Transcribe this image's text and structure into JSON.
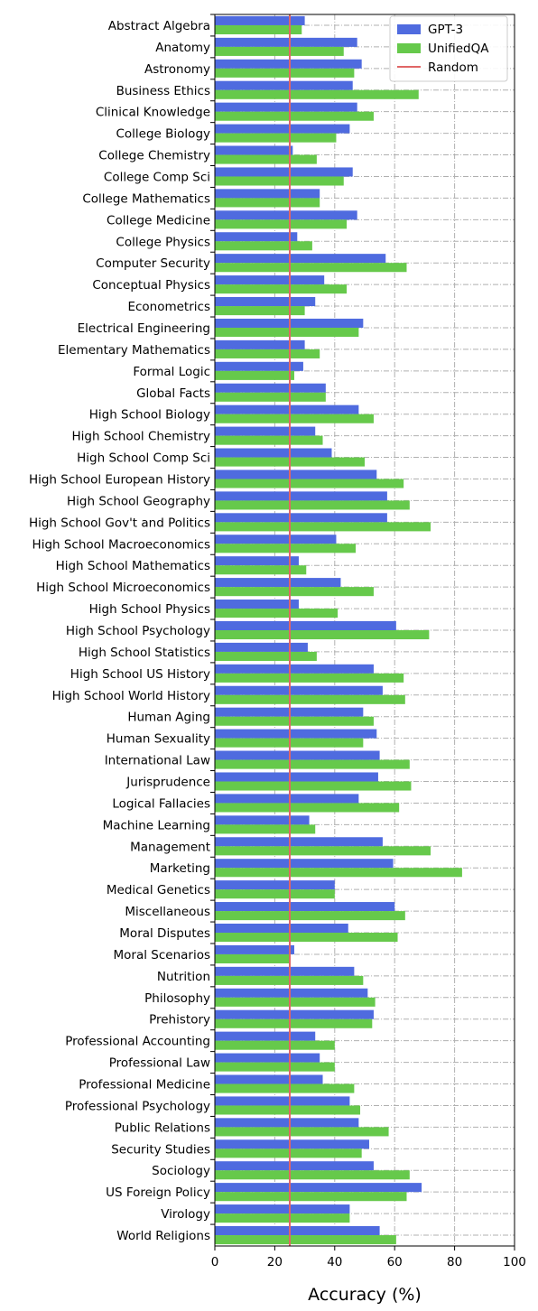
{
  "chart_data": {
    "type": "bar",
    "orientation": "horizontal",
    "xlabel": "Accuracy (%)",
    "ylabel": "",
    "xlim": [
      0,
      100
    ],
    "xticks": [
      0,
      20,
      40,
      60,
      80,
      100
    ],
    "grid": true,
    "legend_position": "top-right",
    "reference_line": {
      "name": "Random",
      "value": 25,
      "color": "#e06666"
    },
    "categories": [
      "Abstract Algebra",
      "Anatomy",
      "Astronomy",
      "Business Ethics",
      "Clinical Knowledge",
      "College Biology",
      "College Chemistry",
      "College Comp Sci",
      "College Mathematics",
      "College Medicine",
      "College Physics",
      "Computer Security",
      "Conceptual Physics",
      "Econometrics",
      "Electrical Engineering",
      "Elementary Mathematics",
      "Formal Logic",
      "Global Facts",
      "High School Biology",
      "High School Chemistry",
      "High School Comp Sci",
      "High School European History",
      "High School Geography",
      "High School Gov't and Politics",
      "High School Macroeconomics",
      "High School Mathematics",
      "High School Microeconomics",
      "High School Physics",
      "High School Psychology",
      "High School Statistics",
      "High School US History",
      "High School World History",
      "Human Aging",
      "Human Sexuality",
      "International Law",
      "Jurisprudence",
      "Logical Fallacies",
      "Machine Learning",
      "Management",
      "Marketing",
      "Medical Genetics",
      "Miscellaneous",
      "Moral Disputes",
      "Moral Scenarios",
      "Nutrition",
      "Philosophy",
      "Prehistory",
      "Professional Accounting",
      "Professional Law",
      "Professional Medicine",
      "Professional Psychology",
      "Public Relations",
      "Security Studies",
      "Sociology",
      "US Foreign Policy",
      "Virology",
      "World Religions"
    ],
    "series": [
      {
        "name": "GPT-3",
        "color": "#4f6bdf",
        "values": [
          30,
          47.5,
          49,
          46,
          47.5,
          45,
          26,
          46,
          35,
          47.5,
          27.5,
          57,
          36.5,
          33.5,
          49.5,
          30,
          29.5,
          37,
          48,
          33.5,
          39,
          54,
          57.5,
          57.5,
          40.5,
          28,
          42,
          28,
          60.5,
          31,
          53,
          56,
          49.5,
          54,
          55,
          54.5,
          48,
          31.5,
          56,
          59.5,
          40,
          60,
          44.5,
          26.5,
          46.5,
          51,
          53,
          33.5,
          35,
          36,
          45,
          48,
          51.5,
          53,
          69,
          45,
          55
        ]
      },
      {
        "name": "UnifiedQA",
        "color": "#66c94b",
        "values": [
          29,
          43,
          46.5,
          68,
          53,
          40.5,
          34,
          43,
          35,
          44,
          32.5,
          64,
          44,
          30,
          48,
          35,
          26.5,
          37,
          53,
          36,
          50,
          63,
          65,
          72,
          47,
          30.5,
          53,
          41,
          71.5,
          34,
          63,
          63.5,
          53,
          49.5,
          65,
          65.5,
          61.5,
          33.5,
          72,
          82.5,
          40,
          63.5,
          61,
          25,
          49.5,
          53.5,
          52.5,
          40,
          40,
          46.5,
          48.5,
          58,
          49,
          65,
          64,
          45,
          60.5
        ]
      }
    ]
  }
}
